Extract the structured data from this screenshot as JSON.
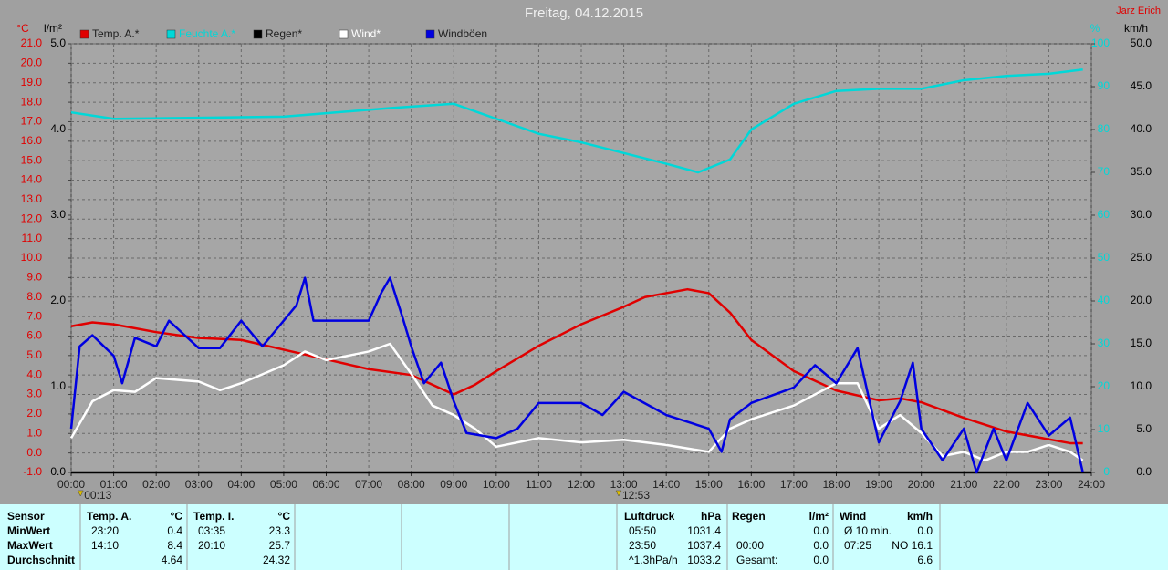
{
  "chart_data": {
    "type": "line",
    "title": "Freitag, 04.12.2015",
    "author": "Jarz Erich",
    "xlim": [
      0,
      24
    ],
    "xticks": [
      {
        "value": 0,
        "label": "00:00"
      },
      {
        "value": 1,
        "label": "01:00"
      },
      {
        "value": 2,
        "label": "02:00"
      },
      {
        "value": 3,
        "label": "03:00"
      },
      {
        "value": 4,
        "label": "04:00"
      },
      {
        "value": 5,
        "label": "05:00"
      },
      {
        "value": 6,
        "label": "06:00"
      },
      {
        "value": 7,
        "label": "07:00"
      },
      {
        "value": 8,
        "label": "08:00"
      },
      {
        "value": 9,
        "label": "09:00"
      },
      {
        "value": 10,
        "label": "10:00"
      },
      {
        "value": 11,
        "label": "11:00"
      },
      {
        "value": 12,
        "label": "12:00"
      },
      {
        "value": 13,
        "label": "13:00"
      },
      {
        "value": 14,
        "label": "14:00"
      },
      {
        "value": 15,
        "label": "15:00"
      },
      {
        "value": 16,
        "label": "16:00"
      },
      {
        "value": 17,
        "label": "17:00"
      },
      {
        "value": 18,
        "label": "18:00"
      },
      {
        "value": 19,
        "label": "19:00"
      },
      {
        "value": 20,
        "label": "20:00"
      },
      {
        "value": 21,
        "label": "21:00"
      },
      {
        "value": 22,
        "label": "22:00"
      },
      {
        "value": 23,
        "label": "23:00"
      },
      {
        "value": 24,
        "label": "24:00"
      }
    ],
    "grid": true,
    "markers": [
      {
        "label": "00:13",
        "x": 0.22
      },
      {
        "label": "12:53",
        "x": 12.88
      }
    ],
    "axes": [
      {
        "id": "temp",
        "side": "left",
        "label": "°C",
        "color": "#e00000",
        "lim": [
          -1,
          21
        ],
        "ticks": [
          {
            "value": -1,
            "label": "-1.0"
          },
          {
            "value": 0,
            "label": "0.0"
          },
          {
            "value": 1,
            "label": "1.0"
          },
          {
            "value": 2,
            "label": "2.0"
          },
          {
            "value": 3,
            "label": "3.0"
          },
          {
            "value": 4,
            "label": "4.0"
          },
          {
            "value": 5,
            "label": "5.0"
          },
          {
            "value": 6,
            "label": "6.0"
          },
          {
            "value": 7,
            "label": "7.0"
          },
          {
            "value": 8,
            "label": "8.0"
          },
          {
            "value": 9,
            "label": "9.0"
          },
          {
            "value": 10,
            "label": "10.0"
          },
          {
            "value": 11,
            "label": "11.0"
          },
          {
            "value": 12,
            "label": "12.0"
          },
          {
            "value": 13,
            "label": "13.0"
          },
          {
            "value": 14,
            "label": "14.0"
          },
          {
            "value": 15,
            "label": "15.0"
          },
          {
            "value": 16,
            "label": "16.0"
          },
          {
            "value": 17,
            "label": "17.0"
          },
          {
            "value": 18,
            "label": "18.0"
          },
          {
            "value": 19,
            "label": "19.0"
          },
          {
            "value": 20,
            "label": "20.0"
          },
          {
            "value": 21,
            "label": "21.0"
          }
        ]
      },
      {
        "id": "rain",
        "side": "left",
        "label": "l/m²",
        "color": "#000000",
        "lim": [
          0,
          5
        ],
        "ticks": [
          {
            "value": 0,
            "label": "0.0"
          },
          {
            "value": 1,
            "label": "1.0"
          },
          {
            "value": 2,
            "label": "2.0"
          },
          {
            "value": 3,
            "label": "3.0"
          },
          {
            "value": 4,
            "label": "4.0"
          },
          {
            "value": 5,
            "label": "5.0"
          }
        ]
      },
      {
        "id": "humidity",
        "side": "right",
        "label": "%",
        "color": "#00d8d8",
        "lim": [
          0,
          100
        ],
        "ticks": [
          0,
          10,
          20,
          30,
          40,
          50,
          60,
          70,
          80,
          90,
          100
        ]
      },
      {
        "id": "wind",
        "side": "right",
        "label": "km/h",
        "color": "#000000",
        "lim": [
          0,
          50
        ],
        "ticks": [
          {
            "value": 0,
            "label": "0.0"
          },
          {
            "value": 5,
            "label": "5.0"
          },
          {
            "value": 10,
            "label": "10.0"
          },
          {
            "value": 15,
            "label": "15.0"
          },
          {
            "value": 20,
            "label": "20.0"
          },
          {
            "value": 25,
            "label": "25.0"
          },
          {
            "value": 30,
            "label": "30.0"
          },
          {
            "value": 35,
            "label": "35.0"
          },
          {
            "value": 40,
            "label": "40.0"
          },
          {
            "value": 45,
            "label": "45.0"
          },
          {
            "value": 50,
            "label": "50.0"
          }
        ]
      }
    ],
    "series": [
      {
        "name": "Temp. A.*",
        "color": "#e00000",
        "axis": "temp",
        "x": [
          0,
          0.5,
          1,
          2,
          3,
          4,
          5,
          6,
          7,
          8,
          8.5,
          9,
          9.5,
          10,
          11,
          12,
          13,
          13.5,
          14,
          14.5,
          15,
          15.5,
          16,
          17,
          18,
          19,
          19.5,
          20,
          21,
          22,
          23,
          23.5,
          23.8
        ],
        "values": [
          6.5,
          6.7,
          6.6,
          6.2,
          5.9,
          5.8,
          5.3,
          4.8,
          4.3,
          4.0,
          3.5,
          3.0,
          3.5,
          4.2,
          5.5,
          6.6,
          7.5,
          8.0,
          8.2,
          8.4,
          8.2,
          7.2,
          5.8,
          4.2,
          3.2,
          2.7,
          2.8,
          2.6,
          1.8,
          1.1,
          0.7,
          0.5,
          0.5
        ]
      },
      {
        "name": "Feuchte A.*",
        "color": "#00d8d8",
        "axis": "humidity",
        "x": [
          0,
          1,
          5,
          7.5,
          9,
          10,
          11,
          12,
          13,
          14,
          14.75,
          15.5,
          16,
          17,
          18,
          19,
          20,
          21,
          22,
          23,
          23.8
        ],
        "values": [
          84,
          82.5,
          83,
          85,
          86,
          82.5,
          79,
          77,
          74.5,
          72,
          70,
          73,
          80,
          86,
          89,
          89.5,
          89.5,
          91.5,
          92.5,
          93,
          94
        ]
      },
      {
        "name": "Regen*",
        "color": "#000000",
        "axis": "rain",
        "x": [
          0,
          24
        ],
        "values": [
          0,
          0
        ]
      },
      {
        "name": "Wind*",
        "color": "#ffffff",
        "axis": "wind",
        "x": [
          0,
          0.5,
          1,
          1.5,
          2,
          3,
          3.5,
          4,
          5,
          5.5,
          6,
          7,
          7.5,
          8,
          8.5,
          9,
          9.5,
          10,
          11,
          12,
          13,
          14,
          15,
          15.5,
          16,
          17,
          18,
          18.5,
          19,
          19.5,
          20,
          20.5,
          21,
          21.5,
          22,
          22.5,
          23,
          23.5,
          23.8
        ],
        "values": [
          4.0,
          8.3,
          9.6,
          9.4,
          11,
          10.6,
          9.6,
          10.4,
          12.5,
          14.1,
          13.1,
          14.1,
          15,
          11.5,
          7.8,
          6.7,
          5.1,
          3,
          4,
          3.5,
          3.8,
          3.2,
          2.4,
          5.1,
          6.2,
          7.8,
          10.4,
          10.4,
          5.1,
          6.7,
          4.6,
          1.9,
          2.4,
          1.4,
          2.4,
          2.4,
          3.2,
          2.4,
          1.4
        ]
      },
      {
        "name": "Windböen",
        "color": "#0000e0",
        "axis": "wind",
        "x": [
          0,
          0.2,
          0.5,
          1,
          1.2,
          1.5,
          2,
          2.3,
          3,
          3.5,
          4,
          4.5,
          5,
          5.3,
          5.5,
          5.7,
          7,
          7.3,
          7.5,
          7.8,
          8,
          8.3,
          8.7,
          9,
          9.3,
          10,
          10.5,
          11,
          12,
          12.5,
          13,
          14,
          15,
          15.3,
          15.5,
          16,
          17,
          17.5,
          18,
          18.5,
          19,
          19.5,
          19.8,
          20,
          20.5,
          21,
          21.3,
          21.7,
          22,
          22.5,
          23,
          23.5,
          23.8
        ],
        "values": [
          5.1,
          14.7,
          16,
          13.6,
          10.4,
          15.7,
          14.7,
          17.7,
          14.5,
          14.5,
          17.7,
          14.7,
          17.7,
          19.5,
          22.7,
          17.7,
          17.7,
          21,
          22.7,
          18,
          14.7,
          10.4,
          12.8,
          8.3,
          4.6,
          4.0,
          5.1,
          8.1,
          8.1,
          6.7,
          9.4,
          6.7,
          5.1,
          2.4,
          6.2,
          8.1,
          9.9,
          12.5,
          10.4,
          14.5,
          3.5,
          8.3,
          12.8,
          5.1,
          1.4,
          5.1,
          0,
          5.1,
          1.4,
          8.1,
          4.3,
          6.4,
          0
        ]
      }
    ]
  },
  "stats": {
    "row_labels": [
      "Sensor",
      "MinWert",
      "MaxWert",
      "Durchschnitt"
    ],
    "groups": [
      {
        "name": "Temp. A.",
        "unit": "°C",
        "rows": [
          {
            "time": "23:20",
            "value": "0.4"
          },
          {
            "time": "14:10",
            "value": "8.4"
          },
          {
            "value": "4.64"
          }
        ]
      },
      {
        "name": "Temp. I.",
        "unit": "°C",
        "rows": [
          {
            "time": "03:35",
            "value": "23.3"
          },
          {
            "time": "20:10",
            "value": "25.7"
          },
          {
            "value": "24.32"
          }
        ]
      },
      {
        "name": "Luftdruck",
        "unit": "hPa",
        "rows": [
          {
            "time": "05:50",
            "value": "1031.4"
          },
          {
            "time": "23:50",
            "value": "1037.4"
          },
          {
            "time": "^1.3hPa/h",
            "value": "1033.2"
          }
        ]
      },
      {
        "name": "Regen",
        "unit": "l/m²",
        "rows": [
          {
            "value": "0.0"
          },
          {
            "time": "00:00",
            "value": "0.0"
          },
          {
            "time": "Gesamt:",
            "value": "0.0"
          }
        ]
      },
      {
        "name": "Wind",
        "unit": "km/h",
        "rows": [
          {
            "time": "Ø 10 min.",
            "value": "0.0"
          },
          {
            "time": "07:25",
            "value": "NO 16.1"
          },
          {
            "value": "6.6"
          }
        ]
      }
    ]
  }
}
